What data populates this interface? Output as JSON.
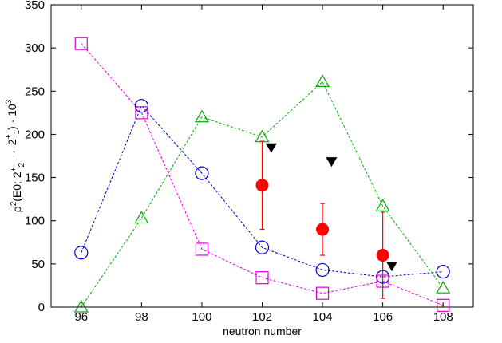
{
  "chart_data": {
    "type": "scatter",
    "xlabel": "neutron number",
    "ylabel": "ρ²(E0; 2⁺₂ → 2⁺₁) · 10³",
    "xlim": [
      95,
      109
    ],
    "ylim": [
      0,
      350
    ],
    "xticks": [
      96,
      98,
      100,
      102,
      104,
      106,
      108
    ],
    "yticks": [
      0,
      50,
      100,
      150,
      200,
      250,
      300,
      350
    ],
    "grid": false,
    "legend": "none",
    "series": [
      {
        "marker": "circle-open",
        "color": "#0000cc",
        "line": "dashed",
        "points": [
          [
            96,
            63
          ],
          [
            98,
            233
          ],
          [
            100,
            155
          ],
          [
            102,
            69
          ],
          [
            104,
            43
          ],
          [
            106,
            35
          ],
          [
            108,
            41
          ]
        ]
      },
      {
        "marker": "triangle-open",
        "color": "#00aa00",
        "line": "dashed",
        "points": [
          [
            96,
            0
          ],
          [
            98,
            103
          ],
          [
            100,
            220
          ],
          [
            102,
            197
          ],
          [
            104,
            261
          ],
          [
            106,
            117
          ],
          [
            108,
            22
          ]
        ]
      },
      {
        "marker": "square-open",
        "color": "#dd00dd",
        "line": "dashed",
        "points": [
          [
            96,
            305
          ],
          [
            98,
            225
          ],
          [
            100,
            67
          ],
          [
            102,
            34
          ],
          [
            104,
            16
          ],
          [
            106,
            30
          ],
          [
            108,
            2
          ]
        ]
      },
      {
        "marker": "circle-filled",
        "color": "#ff0000",
        "line": "none",
        "points": [
          [
            102,
            141
          ],
          [
            104,
            90
          ],
          [
            106,
            60
          ]
        ],
        "err_low": [
          90,
          60,
          10
        ],
        "err_high": [
          192,
          120,
          110
        ]
      },
      {
        "marker": "triangle-down-filled",
        "color": "#000000",
        "line": "none",
        "points": [
          [
            102.3,
            184
          ],
          [
            104.3,
            168
          ],
          [
            106.3,
            47
          ]
        ]
      }
    ]
  }
}
